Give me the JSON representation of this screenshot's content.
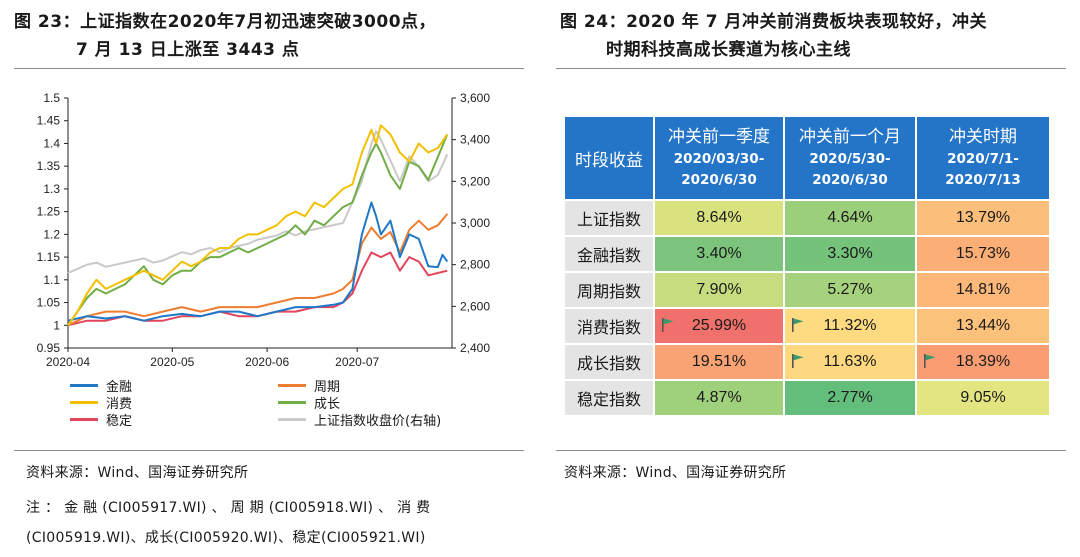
{
  "left_figure": {
    "title_line1": "图 23：上证指数在2020年7月初迅速突破3000点，",
    "title_line2": "7 月 13 日上涨至 3443 点",
    "source": "资料来源：Wind、国海证券研究所",
    "note_line1": "注 ： 金 融 (CI005917.WI) 、 周 期 (CI005918.WI) 、 消 费",
    "note_line2": "(CI005919.WI)、成长(CI005920.WI)、稳定(CI005921.WI)"
  },
  "right_figure": {
    "title_line1": "图 24：2020 年 7 月冲关前消费板块表现较好，冲关",
    "title_line2": "时期科技高成长赛道为核心主线",
    "source": "资料来源：Wind、国海证券研究所"
  },
  "colors": {
    "jinrong": "#1f77c8",
    "zhouqi": "#ed7d31",
    "xiaofei": "#f2c000",
    "chengzhang": "#70ad47",
    "wending": "#e2455c",
    "shangzheng": "#c9c9c9",
    "table_header": "#2474c8",
    "flag": "#3a9a6e"
  },
  "chart_data": {
    "type": "line",
    "title": "",
    "x_tick_labels": [
      "2020-04",
      "2020-05",
      "2020-06",
      "2020-07"
    ],
    "x_range": [
      0,
      81
    ],
    "x_ticks": [
      0,
      22,
      42,
      61
    ],
    "y_left": {
      "min": 0.95,
      "max": 1.5,
      "ticks": [
        "0.95",
        "1",
        "1.05",
        "1.1",
        "1.15",
        "1.2",
        "1.25",
        "1.3",
        "1.35",
        "1.4",
        "1.45",
        "1.5"
      ]
    },
    "y_right": {
      "min": 2400,
      "max": 3600,
      "ticks": [
        "2,400",
        "2,600",
        "2,800",
        "3,000",
        "3,200",
        "3,400",
        "3,600"
      ]
    },
    "series": [
      {
        "name": "金融",
        "axis": "left",
        "colorKey": "jinrong",
        "points": [
          [
            0,
            1.01
          ],
          [
            4,
            1.02
          ],
          [
            8,
            1.015
          ],
          [
            12,
            1.02
          ],
          [
            16,
            1.01
          ],
          [
            20,
            1.02
          ],
          [
            24,
            1.025
          ],
          [
            28,
            1.02
          ],
          [
            32,
            1.03
          ],
          [
            36,
            1.03
          ],
          [
            40,
            1.02
          ],
          [
            44,
            1.03
          ],
          [
            48,
            1.04
          ],
          [
            52,
            1.04
          ],
          [
            56,
            1.045
          ],
          [
            58,
            1.05
          ],
          [
            60,
            1.08
          ],
          [
            62,
            1.2
          ],
          [
            64,
            1.27
          ],
          [
            65,
            1.24
          ],
          [
            66,
            1.2
          ],
          [
            68,
            1.23
          ],
          [
            70,
            1.15
          ],
          [
            72,
            1.2
          ],
          [
            74,
            1.19
          ],
          [
            76,
            1.13
          ],
          [
            78,
            1.128
          ],
          [
            79,
            1.155
          ],
          [
            80,
            1.14
          ]
        ]
      },
      {
        "name": "周期",
        "axis": "left",
        "colorKey": "zhouqi",
        "points": [
          [
            0,
            1.0
          ],
          [
            4,
            1.02
          ],
          [
            8,
            1.03
          ],
          [
            12,
            1.03
          ],
          [
            16,
            1.02
          ],
          [
            20,
            1.03
          ],
          [
            24,
            1.04
          ],
          [
            28,
            1.03
          ],
          [
            32,
            1.04
          ],
          [
            36,
            1.04
          ],
          [
            40,
            1.04
          ],
          [
            44,
            1.05
          ],
          [
            48,
            1.06
          ],
          [
            52,
            1.06
          ],
          [
            56,
            1.07
          ],
          [
            58,
            1.08
          ],
          [
            60,
            1.1
          ],
          [
            62,
            1.18
          ],
          [
            64,
            1.215
          ],
          [
            66,
            1.19
          ],
          [
            68,
            1.205
          ],
          [
            70,
            1.16
          ],
          [
            72,
            1.21
          ],
          [
            74,
            1.23
          ],
          [
            76,
            1.21
          ],
          [
            78,
            1.22
          ],
          [
            80,
            1.245
          ]
        ]
      },
      {
        "name": "消费",
        "axis": "left",
        "colorKey": "xiaofei",
        "points": [
          [
            0,
            1.0
          ],
          [
            2,
            1.03
          ],
          [
            4,
            1.07
          ],
          [
            6,
            1.1
          ],
          [
            8,
            1.08
          ],
          [
            10,
            1.09
          ],
          [
            12,
            1.1
          ],
          [
            14,
            1.11
          ],
          [
            16,
            1.12
          ],
          [
            18,
            1.11
          ],
          [
            20,
            1.1
          ],
          [
            22,
            1.12
          ],
          [
            24,
            1.14
          ],
          [
            26,
            1.13
          ],
          [
            28,
            1.14
          ],
          [
            30,
            1.16
          ],
          [
            32,
            1.17
          ],
          [
            34,
            1.17
          ],
          [
            36,
            1.19
          ],
          [
            38,
            1.2
          ],
          [
            40,
            1.2
          ],
          [
            42,
            1.21
          ],
          [
            44,
            1.22
          ],
          [
            46,
            1.24
          ],
          [
            48,
            1.25
          ],
          [
            50,
            1.24
          ],
          [
            52,
            1.27
          ],
          [
            54,
            1.26
          ],
          [
            56,
            1.28
          ],
          [
            58,
            1.3
          ],
          [
            60,
            1.31
          ],
          [
            62,
            1.38
          ],
          [
            64,
            1.43
          ],
          [
            65,
            1.4
          ],
          [
            66,
            1.44
          ],
          [
            68,
            1.42
          ],
          [
            70,
            1.38
          ],
          [
            72,
            1.36
          ],
          [
            74,
            1.4
          ],
          [
            76,
            1.38
          ],
          [
            78,
            1.39
          ],
          [
            80,
            1.42
          ]
        ]
      },
      {
        "name": "成长",
        "axis": "left",
        "colorKey": "chengzhang",
        "points": [
          [
            0,
            1.0
          ],
          [
            2,
            1.03
          ],
          [
            4,
            1.06
          ],
          [
            6,
            1.08
          ],
          [
            8,
            1.07
          ],
          [
            10,
            1.08
          ],
          [
            12,
            1.09
          ],
          [
            14,
            1.11
          ],
          [
            16,
            1.13
          ],
          [
            18,
            1.1
          ],
          [
            20,
            1.09
          ],
          [
            22,
            1.11
          ],
          [
            24,
            1.12
          ],
          [
            26,
            1.12
          ],
          [
            28,
            1.14
          ],
          [
            30,
            1.15
          ],
          [
            32,
            1.15
          ],
          [
            34,
            1.16
          ],
          [
            36,
            1.17
          ],
          [
            38,
            1.16
          ],
          [
            40,
            1.17
          ],
          [
            42,
            1.18
          ],
          [
            44,
            1.19
          ],
          [
            46,
            1.2
          ],
          [
            48,
            1.22
          ],
          [
            50,
            1.2
          ],
          [
            52,
            1.23
          ],
          [
            54,
            1.22
          ],
          [
            56,
            1.24
          ],
          [
            58,
            1.26
          ],
          [
            60,
            1.27
          ],
          [
            62,
            1.33
          ],
          [
            64,
            1.38
          ],
          [
            65,
            1.4
          ],
          [
            66,
            1.38
          ],
          [
            68,
            1.33
          ],
          [
            70,
            1.3
          ],
          [
            72,
            1.36
          ],
          [
            74,
            1.35
          ],
          [
            76,
            1.32
          ],
          [
            78,
            1.37
          ],
          [
            80,
            1.42
          ]
        ]
      },
      {
        "name": "稳定",
        "axis": "left",
        "colorKey": "wending",
        "points": [
          [
            0,
            1.0
          ],
          [
            4,
            1.01
          ],
          [
            8,
            1.01
          ],
          [
            12,
            1.02
          ],
          [
            16,
            1.01
          ],
          [
            20,
            1.01
          ],
          [
            24,
            1.02
          ],
          [
            28,
            1.02
          ],
          [
            32,
            1.03
          ],
          [
            36,
            1.02
          ],
          [
            40,
            1.02
          ],
          [
            44,
            1.03
          ],
          [
            48,
            1.03
          ],
          [
            52,
            1.04
          ],
          [
            56,
            1.04
          ],
          [
            58,
            1.05
          ],
          [
            60,
            1.07
          ],
          [
            62,
            1.12
          ],
          [
            64,
            1.16
          ],
          [
            66,
            1.15
          ],
          [
            68,
            1.16
          ],
          [
            70,
            1.12
          ],
          [
            72,
            1.15
          ],
          [
            74,
            1.14
          ],
          [
            76,
            1.11
          ],
          [
            78,
            1.115
          ],
          [
            80,
            1.12
          ]
        ]
      },
      {
        "name": "上证指数收盘价(右轴)",
        "axis": "right",
        "colorKey": "shangzheng",
        "points": [
          [
            0,
            2760
          ],
          [
            2,
            2780
          ],
          [
            4,
            2800
          ],
          [
            6,
            2810
          ],
          [
            8,
            2790
          ],
          [
            10,
            2800
          ],
          [
            12,
            2810
          ],
          [
            14,
            2820
          ],
          [
            16,
            2830
          ],
          [
            18,
            2810
          ],
          [
            20,
            2820
          ],
          [
            22,
            2840
          ],
          [
            24,
            2860
          ],
          [
            26,
            2850
          ],
          [
            28,
            2870
          ],
          [
            30,
            2880
          ],
          [
            32,
            2860
          ],
          [
            34,
            2880
          ],
          [
            36,
            2890
          ],
          [
            38,
            2900
          ],
          [
            40,
            2920
          ],
          [
            42,
            2930
          ],
          [
            44,
            2940
          ],
          [
            46,
            2960
          ],
          [
            48,
            2940
          ],
          [
            50,
            2960
          ],
          [
            52,
            2970
          ],
          [
            54,
            2980
          ],
          [
            56,
            2990
          ],
          [
            58,
            3000
          ],
          [
            60,
            3100
          ],
          [
            62,
            3200
          ],
          [
            64,
            3380
          ],
          [
            65,
            3440
          ],
          [
            66,
            3400
          ],
          [
            68,
            3300
          ],
          [
            70,
            3200
          ],
          [
            72,
            3320
          ],
          [
            74,
            3270
          ],
          [
            76,
            3200
          ],
          [
            78,
            3230
          ],
          [
            80,
            3330
          ]
        ]
      }
    ]
  },
  "legend": [
    {
      "label": "金融",
      "colorKey": "jinrong"
    },
    {
      "label": "周期",
      "colorKey": "zhouqi"
    },
    {
      "label": "消费",
      "colorKey": "xiaofei"
    },
    {
      "label": "成长",
      "colorKey": "chengzhang"
    },
    {
      "label": "稳定",
      "colorKey": "wending"
    },
    {
      "label": "上证指数收盘价(右轴)",
      "colorKey": "shangzheng"
    }
  ],
  "table": {
    "corner": "时段收益",
    "columns": [
      {
        "h1": "冲关前一季度",
        "h2a": "2020/03/30-",
        "h2b": "2020/6/30"
      },
      {
        "h1": "冲关前一个月",
        "h2a": "2020/5/30-",
        "h2b": "2020/6/30"
      },
      {
        "h1": "冲关时期",
        "h2a": "2020/7/1-",
        "h2b": "2020/7/13"
      }
    ],
    "rows": [
      {
        "label": "上证指数",
        "cells": [
          {
            "v": "8.64%",
            "bg": "#d9e27f",
            "flag": false
          },
          {
            "v": "4.64%",
            "bg": "#9ccf7b",
            "flag": false
          },
          {
            "v": "13.79%",
            "bg": "#fcbf7b",
            "flag": false
          }
        ]
      },
      {
        "label": "金融指数",
        "cells": [
          {
            "v": "3.40%",
            "bg": "#7cc47c",
            "flag": false
          },
          {
            "v": "3.30%",
            "bg": "#75c27b",
            "flag": false
          },
          {
            "v": "15.73%",
            "bg": "#fbaf77",
            "flag": false
          }
        ]
      },
      {
        "label": "周期指数",
        "cells": [
          {
            "v": "7.90%",
            "bg": "#c7dc7e",
            "flag": false
          },
          {
            "v": "5.27%",
            "bg": "#a6d27d",
            "flag": false
          },
          {
            "v": "14.81%",
            "bg": "#fcb779",
            "flag": false
          }
        ]
      },
      {
        "label": "消费指数",
        "cells": [
          {
            "v": "25.99%",
            "bg": "#f0716b",
            "flag": true
          },
          {
            "v": "11.32%",
            "bg": "#fedb81",
            "flag": true
          },
          {
            "v": "13.44%",
            "bg": "#fcc27c",
            "flag": false
          }
        ]
      },
      {
        "label": "成长指数",
        "cells": [
          {
            "v": "19.51%",
            "bg": "#f9a273",
            "flag": false
          },
          {
            "v": "11.63%",
            "bg": "#fed880",
            "flag": true
          },
          {
            "v": "18.39%",
            "bg": "#f99d72",
            "flag": true
          }
        ]
      },
      {
        "label": "稳定指数",
        "cells": [
          {
            "v": "4.87%",
            "bg": "#9fd07c",
            "flag": false
          },
          {
            "v": "2.77%",
            "bg": "#63be7b",
            "flag": false
          },
          {
            "v": "9.05%",
            "bg": "#e3e580",
            "flag": false
          }
        ]
      }
    ]
  }
}
